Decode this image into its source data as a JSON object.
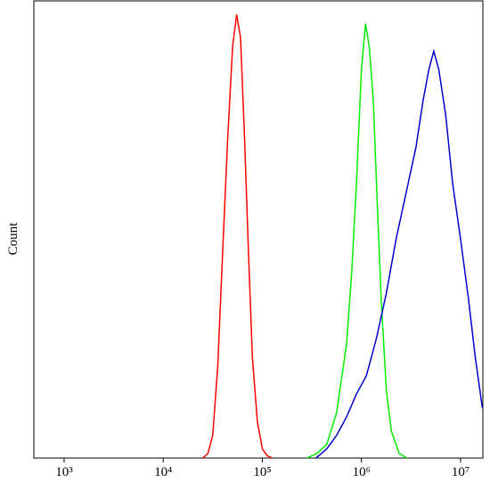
{
  "chart_data": {
    "type": "line",
    "xscale": "log",
    "ylabel": "Count",
    "xlim": [
      495,
      16800000
    ],
    "ylim": [
      0,
      100
    ],
    "xticks": [
      {
        "value": 1000,
        "label": "10³"
      },
      {
        "value": 10000,
        "label": "10⁴"
      },
      {
        "value": 100000,
        "label": "10⁵"
      },
      {
        "value": 1000000,
        "label": "10⁶"
      },
      {
        "value": 10000000,
        "label": "10⁷"
      }
    ],
    "series": [
      {
        "color": "#ff0000",
        "x": [
          25100,
          28200,
          31600,
          35500,
          39800,
          44700,
          50100,
          55000,
          60300,
          66100,
          72400,
          79400,
          89100,
          100000,
          112000,
          126000
        ],
        "values": [
          0,
          1,
          5,
          20,
          45,
          70,
          90,
          97,
          92,
          70,
          45,
          22,
          8,
          2,
          0.5,
          0
        ]
      },
      {
        "color": "#00ee00",
        "x": [
          282000,
          355000,
          447000,
          562000,
          708000,
          794000,
          891000,
          1000000,
          1100000,
          1200000,
          1320000,
          1450000,
          1580000,
          1780000,
          2000000,
          2400000,
          2880000
        ],
        "values": [
          0,
          1,
          3,
          10,
          25,
          40,
          60,
          85,
          95,
          90,
          78,
          55,
          35,
          15,
          6,
          1,
          0
        ]
      },
      {
        "color": "#0000cc",
        "x": [
          347000,
          447000,
          562000,
          708000,
          891000,
          1120000,
          1410000,
          1780000,
          2240000,
          2820000,
          3550000,
          4170000,
          4790000,
          5370000,
          6030000,
          7080000,
          8320000,
          10000000,
          12000000,
          14100000,
          16600000
        ],
        "values": [
          0,
          2,
          5,
          9,
          14,
          18,
          26,
          36,
          48,
          58,
          68,
          78,
          85,
          89,
          85,
          75,
          60,
          48,
          35,
          22,
          11
        ]
      }
    ]
  }
}
